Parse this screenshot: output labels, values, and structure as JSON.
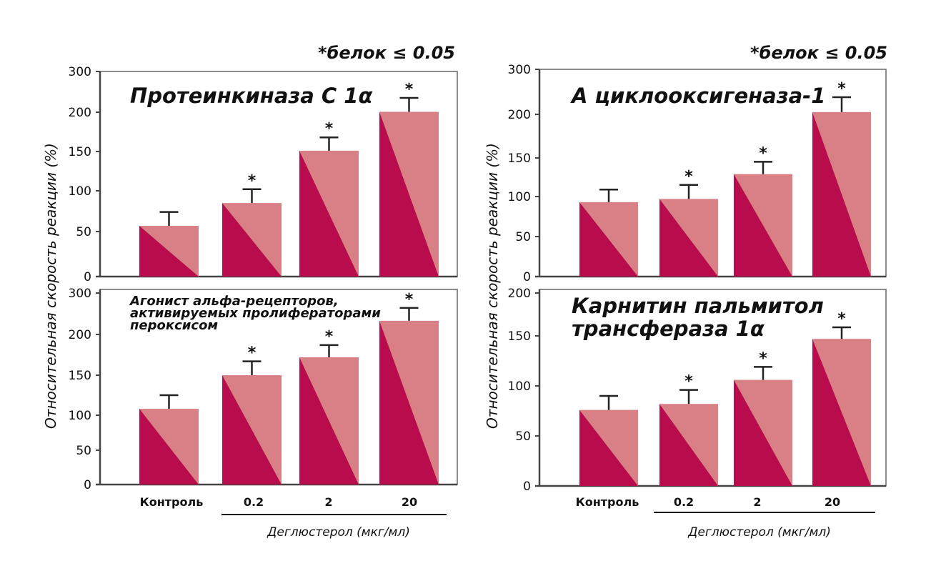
{
  "figure": {
    "ylabel": "Относительная скорость реакции (%)",
    "xlabel": "Деглюстерол (мкг/мл)",
    "significance_note": "*белок ≤ 0.05",
    "colors": {
      "bar_dark": "#b80c4c",
      "bar_light": "#d98087",
      "axis": "#444444"
    }
  },
  "chart_data": [
    {
      "type": "bar",
      "title": "Протеинкиназа С 1α",
      "categories": [
        "Контроль",
        "0.2",
        "2",
        "20"
      ],
      "values": [
        57,
        85,
        151,
        201
      ],
      "error_upper": [
        74,
        102,
        168,
        235
      ],
      "significant": [
        false,
        true,
        true,
        true
      ],
      "yticks": [
        0,
        50,
        100,
        150,
        200,
        300
      ],
      "ylim": [
        0,
        300
      ],
      "note": "*белок ≤ 0.05"
    },
    {
      "type": "bar",
      "title": "Агонист альфа-рецепторов, активируемых пролифераторами пероксисом",
      "title_lines": [
        "Агонист альфа-рецепторов,",
        "активируемых пролифераторами",
        "пероксисом"
      ],
      "categories": [
        "Контроль",
        "0.2",
        "2",
        "20"
      ],
      "values": [
        108,
        150,
        172,
        233
      ],
      "error_upper": [
        125,
        167,
        187,
        264
      ],
      "significant": [
        false,
        true,
        true,
        true
      ],
      "yticks": [
        0,
        50,
        100,
        150,
        200,
        300
      ],
      "ylim": [
        0,
        300
      ],
      "xlabel": "Деглюстерол (мкг/мл)"
    },
    {
      "type": "bar",
      "title": "А циклооксигеназа-1",
      "categories": [
        "Контроль",
        "0.2",
        "2",
        "20"
      ],
      "values": [
        93,
        97,
        129,
        205
      ],
      "error_upper": [
        109,
        115,
        145,
        238
      ],
      "significant": [
        false,
        true,
        true,
        true
      ],
      "yticks": [
        0,
        50,
        100,
        150,
        200,
        300
      ],
      "ylim": [
        0,
        300
      ],
      "note": "*белок ≤ 0.05"
    },
    {
      "type": "bar",
      "title": "Карнитин пальмитол трансфераза 1α",
      "title_lines": [
        "Карнитин пальмитол",
        "трансфераза 1α"
      ],
      "categories": [
        "Контроль",
        "0.2",
        "2",
        "20"
      ],
      "values": [
        76,
        82,
        106,
        147
      ],
      "error_upper": [
        90,
        96,
        119,
        160
      ],
      "significant": [
        false,
        true,
        true,
        true
      ],
      "yticks": [
        0,
        50,
        100,
        150,
        200
      ],
      "ylim": [
        0,
        200
      ],
      "xlabel": "Деглюстерол (мкг/мл)"
    }
  ]
}
